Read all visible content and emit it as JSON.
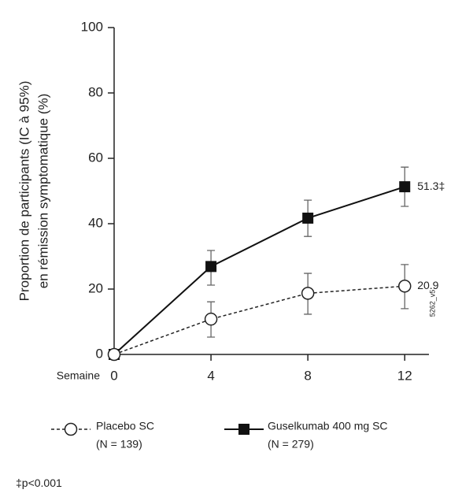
{
  "chart_data": {
    "type": "line",
    "y_label": [
      "Proportion de participants (IC à 95%)",
      "en rémission symptomatique  (%)"
    ],
    "x_label": "Semaine",
    "x": [
      0,
      4,
      8,
      12
    ],
    "xlim": [
      0,
      13
    ],
    "xticks": [
      0,
      4,
      8,
      12
    ],
    "ylim": [
      0,
      100
    ],
    "yticks": [
      0,
      20,
      40,
      60,
      80,
      100
    ],
    "series": [
      {
        "name": "Placebo SC",
        "n_label": "(N = 139)",
        "color": "#222222",
        "marker": "circle",
        "dashed": true,
        "values": [
          0,
          10.8,
          18.7,
          20.9
        ],
        "lower": [
          null,
          5.3,
          12.3,
          14.0
        ],
        "upper": [
          null,
          16.1,
          24.8,
          27.5
        ],
        "value_labels": [
          null,
          null,
          null,
          "20.9"
        ]
      },
      {
        "name": "Guselkumab 400 mg SC",
        "n_label": "(N = 279)",
        "color": "#111111",
        "marker": "square",
        "dashed": false,
        "values": [
          0,
          26.9,
          41.7,
          51.3
        ],
        "lower": [
          null,
          21.2,
          36.1,
          45.3
        ],
        "upper": [
          null,
          31.8,
          47.2,
          57.3
        ],
        "value_labels": [
          null,
          null,
          null,
          "51.3‡"
        ]
      }
    ],
    "side_code": "5262_v5",
    "footnote": "‡p<0.001"
  }
}
